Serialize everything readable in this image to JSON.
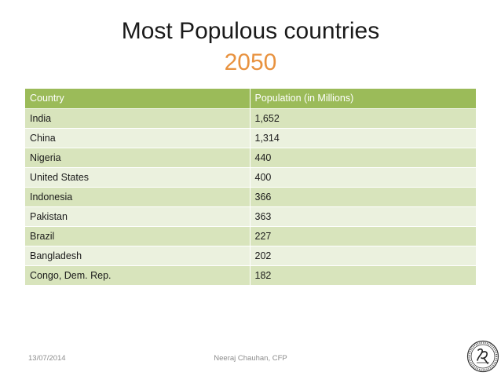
{
  "slide": {
    "title": "Most Populous countries",
    "subtitle": "2050"
  },
  "table": {
    "headers": [
      "Country",
      "Population (in Millions)"
    ],
    "rows": [
      [
        "India",
        "1,652"
      ],
      [
        "China",
        "1,314"
      ],
      [
        "Nigeria",
        "440"
      ],
      [
        "United States",
        "400"
      ],
      [
        "Indonesia",
        "366"
      ],
      [
        "Pakistan",
        "363"
      ],
      [
        "Brazil",
        "227"
      ],
      [
        "Bangladesh",
        "202"
      ],
      [
        "Congo, Dem. Rep.",
        "182"
      ]
    ]
  },
  "footer": {
    "date": "13/07/2014",
    "author": "Neeraj Chauhan, CFP"
  },
  "colors": {
    "header_bg": "#9bbb59",
    "row_dark": "#d8e4bc",
    "row_light": "#ebf1de",
    "subtitle": "#e8923f"
  },
  "icons": {
    "seal": "signature-seal-icon"
  }
}
